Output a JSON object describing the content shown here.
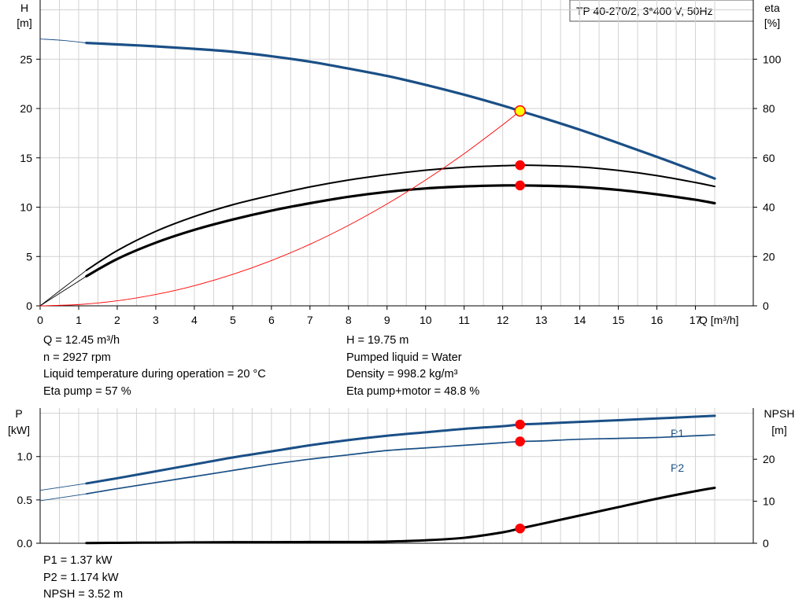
{
  "chart_data": [
    {
      "type": "line",
      "title": "TP 40-270/2, 3*400 V, 50Hz",
      "xlabel": "Q [m³/h]",
      "ylabel": [
        "H",
        "[m]"
      ],
      "y2label": [
        "eta",
        "[%]"
      ],
      "xlim": [
        0,
        18.5
      ],
      "ylim": [
        0,
        31
      ],
      "y2lim": [
        0,
        124
      ],
      "xticks": [
        0,
        1,
        2,
        3,
        4,
        5,
        6,
        7,
        8,
        9,
        10,
        11,
        12,
        13,
        14,
        15,
        16,
        17
      ],
      "yticks": [
        0,
        5,
        10,
        15,
        20,
        25
      ],
      "y2ticks": [
        0,
        20,
        40,
        60,
        80,
        100
      ],
      "grid": true,
      "series": [
        {
          "axis": "y",
          "color": "#1a4f86",
          "width": 3.2,
          "ext": {
            "x": [
              0,
              0.6,
              1.2
            ],
            "y": [
              27.05,
              26.9,
              26.65
            ]
          },
          "x": [
            1.2,
            2,
            3,
            4,
            5,
            6,
            7,
            8,
            9,
            10,
            11,
            12,
            12.45,
            13,
            14,
            15,
            16,
            17,
            17.5
          ],
          "y": [
            26.65,
            26.5,
            26.3,
            26.05,
            25.75,
            25.3,
            24.75,
            24.05,
            23.3,
            22.4,
            21.4,
            20.3,
            19.75,
            19.1,
            17.85,
            16.5,
            15.1,
            13.65,
            12.9
          ]
        },
        {
          "axis": "y2",
          "color": "#000000",
          "width": 2.0,
          "ext": {
            "x": [
              0,
              0.6,
              1.2
            ],
            "y": [
              0,
              7.2,
              14.4
            ]
          },
          "x": [
            1.2,
            2,
            3,
            4,
            5,
            6,
            7,
            8,
            9,
            10,
            11,
            12,
            12.45,
            13,
            14,
            15,
            16,
            17,
            17.5
          ],
          "y": [
            14.4,
            22.4,
            30.2,
            36.2,
            41.0,
            44.8,
            48.2,
            51.0,
            53.2,
            55.0,
            56.2,
            56.8,
            57.0,
            56.9,
            56.3,
            54.9,
            52.8,
            50.0,
            48.4
          ]
        },
        {
          "axis": "y2",
          "color": "#000000",
          "width": 3.2,
          "ext": {
            "x": [
              0,
              0.6,
              1.2
            ],
            "y": [
              0,
              6.0,
              12.0
            ]
          },
          "x": [
            1.2,
            2,
            3,
            4,
            5,
            6,
            7,
            8,
            9,
            10,
            11,
            12,
            12.45,
            13,
            14,
            15,
            16,
            17,
            17.5
          ],
          "y": [
            12.0,
            19.0,
            25.6,
            30.8,
            35.0,
            38.6,
            41.6,
            44.2,
            46.2,
            47.6,
            48.4,
            48.8,
            48.8,
            48.7,
            48.2,
            47.0,
            45.2,
            43.0,
            41.6
          ]
        },
        {
          "axis": "y",
          "color": "#ff0000",
          "width": 0.9,
          "x": [
            0,
            1,
            2,
            3,
            4,
            5,
            6,
            7,
            8,
            9,
            10,
            11,
            12,
            12.45
          ],
          "y": [
            0,
            0.13,
            0.51,
            1.15,
            2.04,
            3.19,
            4.59,
            6.24,
            8.16,
            10.33,
            12.75,
            15.42,
            18.35,
            19.75
          ]
        }
      ],
      "points": [
        {
          "axis": "y",
          "x": 12.45,
          "y": 19.75,
          "fill": "#ffff00",
          "stroke": "#ff0000"
        },
        {
          "axis": "y2",
          "x": 12.45,
          "y": 57.0,
          "fill": "#ff0000",
          "stroke": "#ff0000"
        },
        {
          "axis": "y2",
          "x": 12.45,
          "y": 48.8,
          "fill": "#ff0000",
          "stroke": "#ff0000"
        }
      ]
    },
    {
      "type": "line",
      "xlim": [
        0,
        18.5
      ],
      "ylim": [
        0,
        1.56
      ],
      "y2lim": [
        0,
        32.2
      ],
      "ylabel": [
        "P",
        "[kW]"
      ],
      "y2label": [
        "NPSH",
        "[m]"
      ],
      "yticks": [
        "0.0",
        "0.5",
        "1.0"
      ],
      "y2ticks": [
        0,
        10,
        20
      ],
      "grid": true,
      "series": [
        {
          "name": "P1",
          "axis": "y",
          "color": "#1a4f86",
          "width": 3.0,
          "ext": {
            "x": [
              0,
              0.6,
              1.2
            ],
            "y": [
              0.61,
              0.65,
              0.69
            ]
          },
          "x": [
            1.2,
            2,
            3,
            4,
            5,
            6,
            7,
            8,
            9,
            10,
            11,
            12,
            12.45,
            13,
            14,
            15,
            16,
            17,
            17.5
          ],
          "y": [
            0.69,
            0.75,
            0.83,
            0.91,
            0.99,
            1.06,
            1.13,
            1.19,
            1.24,
            1.28,
            1.32,
            1.35,
            1.37,
            1.38,
            1.4,
            1.42,
            1.44,
            1.46,
            1.47
          ]
        },
        {
          "name": "P2",
          "axis": "y",
          "color": "#1a4f86",
          "width": 1.7,
          "ext": {
            "x": [
              0,
              0.6,
              1.2
            ],
            "y": [
              0.49,
              0.53,
              0.57
            ]
          },
          "x": [
            1.2,
            2,
            3,
            4,
            5,
            6,
            7,
            8,
            9,
            10,
            11,
            12,
            12.45,
            13,
            14,
            15,
            16,
            17,
            17.5
          ],
          "y": [
            0.57,
            0.63,
            0.7,
            0.77,
            0.84,
            0.91,
            0.97,
            1.02,
            1.07,
            1.1,
            1.13,
            1.16,
            1.174,
            1.18,
            1.2,
            1.21,
            1.22,
            1.24,
            1.25
          ]
        },
        {
          "name": "NPSH",
          "axis": "y2",
          "color": "#000000",
          "width": 3.0,
          "x": [
            1.2,
            2,
            3,
            4,
            5,
            6,
            7,
            8,
            9,
            10,
            11,
            12,
            12.45,
            13,
            14,
            15,
            16,
            17,
            17.5
          ],
          "y": [
            0.05,
            0.1,
            0.15,
            0.2,
            0.25,
            0.25,
            0.3,
            0.3,
            0.4,
            0.7,
            1.3,
            2.6,
            3.52,
            4.6,
            6.6,
            8.6,
            10.6,
            12.4,
            13.2
          ]
        }
      ],
      "points": [
        {
          "axis": "y",
          "x": 12.45,
          "y": 1.37,
          "fill": "#ff0000",
          "stroke": "#ff0000"
        },
        {
          "axis": "y",
          "x": 12.45,
          "y": 1.174,
          "fill": "#ff0000",
          "stroke": "#ff0000"
        },
        {
          "axis": "y2",
          "x": 12.45,
          "y": 3.52,
          "fill": "#ff0000",
          "stroke": "#ff0000"
        }
      ]
    }
  ],
  "info_top_left": [
    "Q = 12.45 m³/h",
    "n = 2927 rpm",
    "Liquid temperature during operation = 20 °C",
    "Eta pump = 57 %"
  ],
  "info_top_right": [
    "H = 19.75 m",
    "Pumped liquid = Water",
    "Density = 998.2 kg/m³",
    "Eta pump+motor = 48.8 %"
  ],
  "info_bottom": [
    "P1 = 1.37 kW",
    "P2 = 1.174 kW",
    "NPSH = 3.52 m"
  ]
}
